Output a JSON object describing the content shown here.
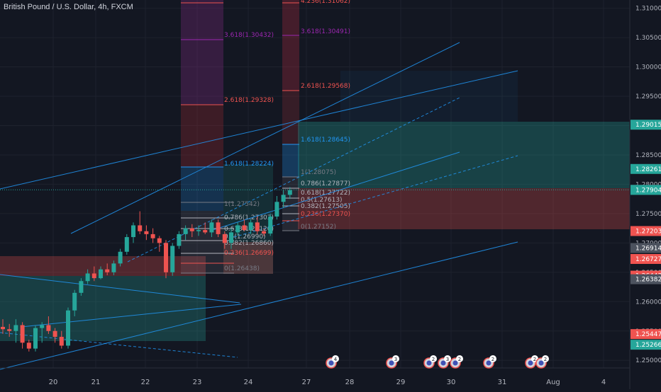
{
  "chart_data": {
    "type": "candlestick",
    "title": "British Pound / U.S. Dollar, 4h, FXCM",
    "ylim": [
      1.2487,
      1.3114
    ],
    "y_ticks": [
      "1.31000",
      "1.30500",
      "1.30000",
      "1.29500",
      "1.29000",
      "1.28500",
      "1.28000",
      "1.27500",
      "1.27000",
      "1.26500",
      "1.26000",
      "1.25500",
      "1.25000"
    ],
    "x_ticks": [
      "20",
      "21",
      "22",
      "23",
      "24",
      "27",
      "28",
      "29",
      "30",
      "31",
      "Aug",
      "4"
    ],
    "price_labels": [
      {
        "value": "1.29015",
        "color": "#26a69a"
      },
      {
        "value": "1.28261",
        "color": "#26a69a"
      },
      {
        "value": "1.27906",
        "color": "#4c525e"
      },
      {
        "value": "1.27904",
        "color": "#26a69a"
      },
      {
        "value": "1.27203",
        "color": "#ef5350"
      },
      {
        "value": "1.26914",
        "color": "#4c525e"
      },
      {
        "value": "1.26727",
        "color": "#ef5350"
      },
      {
        "value": "1.26443",
        "color": "#ef5350"
      },
      {
        "value": "1.26382",
        "color": "#4c525e"
      },
      {
        "value": "1.25447",
        "color": "#ef5350"
      },
      {
        "value": "1.25266",
        "color": "#26a69a"
      }
    ],
    "candles": [
      {
        "o": 1.2557,
        "h": 1.257,
        "l": 1.2545,
        "c": 1.2553
      },
      {
        "o": 1.2553,
        "h": 1.2562,
        "l": 1.254,
        "c": 1.255
      },
      {
        "o": 1.255,
        "h": 1.257,
        "l": 1.253,
        "c": 1.256
      },
      {
        "o": 1.256,
        "h": 1.2565,
        "l": 1.252,
        "c": 1.253
      },
      {
        "o": 1.253,
        "h": 1.2535,
        "l": 1.2515,
        "c": 1.252
      },
      {
        "o": 1.252,
        "h": 1.256,
        "l": 1.2515,
        "c": 1.2555
      },
      {
        "o": 1.2555,
        "h": 1.2565,
        "l": 1.253,
        "c": 1.256
      },
      {
        "o": 1.256,
        "h": 1.2575,
        "l": 1.2545,
        "c": 1.255
      },
      {
        "o": 1.255,
        "h": 1.2555,
        "l": 1.253,
        "c": 1.254
      },
      {
        "o": 1.254,
        "h": 1.255,
        "l": 1.252,
        "c": 1.2525
      },
      {
        "o": 1.2525,
        "h": 1.259,
        "l": 1.252,
        "c": 1.2585
      },
      {
        "o": 1.2585,
        "h": 1.262,
        "l": 1.2575,
        "c": 1.2615
      },
      {
        "o": 1.2615,
        "h": 1.264,
        "l": 1.261,
        "c": 1.2635
      },
      {
        "o": 1.2635,
        "h": 1.2655,
        "l": 1.263,
        "c": 1.2648
      },
      {
        "o": 1.2648,
        "h": 1.266,
        "l": 1.2635,
        "c": 1.264
      },
      {
        "o": 1.264,
        "h": 1.266,
        "l": 1.2638,
        "c": 1.2655
      },
      {
        "o": 1.2655,
        "h": 1.2665,
        "l": 1.2645,
        "c": 1.265
      },
      {
        "o": 1.265,
        "h": 1.267,
        "l": 1.2645,
        "c": 1.2665
      },
      {
        "o": 1.2665,
        "h": 1.269,
        "l": 1.266,
        "c": 1.2685
      },
      {
        "o": 1.2685,
        "h": 1.2715,
        "l": 1.268,
        "c": 1.271
      },
      {
        "o": 1.271,
        "h": 1.2735,
        "l": 1.27,
        "c": 1.273
      },
      {
        "o": 1.273,
        "h": 1.2754,
        "l": 1.2715,
        "c": 1.272
      },
      {
        "o": 1.272,
        "h": 1.273,
        "l": 1.2705,
        "c": 1.2715
      },
      {
        "o": 1.2715,
        "h": 1.2725,
        "l": 1.27,
        "c": 1.2708
      },
      {
        "o": 1.2708,
        "h": 1.2712,
        "l": 1.2685,
        "c": 1.27
      },
      {
        "o": 1.27,
        "h": 1.2705,
        "l": 1.264,
        "c": 1.265
      },
      {
        "o": 1.265,
        "h": 1.27,
        "l": 1.2644,
        "c": 1.2695
      },
      {
        "o": 1.2695,
        "h": 1.272,
        "l": 1.269,
        "c": 1.2715
      },
      {
        "o": 1.2715,
        "h": 1.273,
        "l": 1.2705,
        "c": 1.2725
      },
      {
        "o": 1.2725,
        "h": 1.2732,
        "l": 1.271,
        "c": 1.272
      },
      {
        "o": 1.272,
        "h": 1.273,
        "l": 1.2712,
        "c": 1.2722
      },
      {
        "o": 1.2722,
        "h": 1.2735,
        "l": 1.2715,
        "c": 1.2718
      },
      {
        "o": 1.2718,
        "h": 1.274,
        "l": 1.271,
        "c": 1.2735
      },
      {
        "o": 1.2735,
        "h": 1.274,
        "l": 1.271,
        "c": 1.2715
      },
      {
        "o": 1.2715,
        "h": 1.272,
        "l": 1.269,
        "c": 1.27
      },
      {
        "o": 1.27,
        "h": 1.2725,
        "l": 1.269,
        "c": 1.2718
      },
      {
        "o": 1.2718,
        "h": 1.2735,
        "l": 1.2712,
        "c": 1.273
      },
      {
        "o": 1.273,
        "h": 1.274,
        "l": 1.272,
        "c": 1.2722
      },
      {
        "o": 1.2722,
        "h": 1.274,
        "l": 1.2715,
        "c": 1.2735
      },
      {
        "o": 1.2735,
        "h": 1.2745,
        "l": 1.2715,
        "c": 1.272
      },
      {
        "o": 1.272,
        "h": 1.2725,
        "l": 1.2712,
        "c": 1.2716
      },
      {
        "o": 1.2716,
        "h": 1.275,
        "l": 1.2712,
        "c": 1.2745
      },
      {
        "o": 1.2745,
        "h": 1.278,
        "l": 1.274,
        "c": 1.277
      },
      {
        "o": 1.277,
        "h": 1.279,
        "l": 1.276,
        "c": 1.2782
      },
      {
        "o": 1.2782,
        "h": 1.2795,
        "l": 1.2775,
        "c": 1.279
      }
    ],
    "fib_labels": [
      {
        "text": "4.236(1.31062)",
        "color": "#ef5350"
      },
      {
        "text": "3.618(1.30432)",
        "color": "#9c27b0"
      },
      {
        "text": "3.618(1.30491)",
        "color": "#9c27b0"
      },
      {
        "text": "2.618(1.29328)",
        "color": "#ef5350"
      },
      {
        "text": "2.618(1.29568)",
        "color": "#ef5350"
      },
      {
        "text": "1.618(1.28645)",
        "color": "#2196f3"
      },
      {
        "text": "1.618(1.28224)",
        "color": "#2196f3"
      },
      {
        "text": "1(1.28075)",
        "color": "#787b86"
      },
      {
        "text": "0.786(1.27877)",
        "color": "#b2b5be"
      },
      {
        "text": "0.618(1.27722)",
        "color": "#b2b5be"
      },
      {
        "text": "0.5(1.27613)",
        "color": "#b2b5be"
      },
      {
        "text": "0.382(1.27505)",
        "color": "#b2b5be"
      },
      {
        "text": "0.236(1.27370)",
        "color": "#ef5350"
      },
      {
        "text": "0(1.27152)",
        "color": "#787b86"
      },
      {
        "text": "1(1.27542)",
        "color": "#787b86"
      },
      {
        "text": "0.786(1.27303)",
        "color": "#b2b5be"
      },
      {
        "text": "0.618(1.27120)",
        "color": "#b2b5be"
      },
      {
        "text": "0.5(1.26990)",
        "color": "#b2b5be"
      },
      {
        "text": "0.382(1.26860)",
        "color": "#b2b5be"
      },
      {
        "text": "0.236(1.26699)",
        "color": "#ef5350"
      },
      {
        "text": "0(1.26438)",
        "color": "#787b86"
      }
    ],
    "event_badges": [
      "4",
      "3",
      "2",
      "3",
      "2",
      "2",
      "2",
      "2"
    ],
    "colors": {
      "up": "#26a69a",
      "down": "#ef5350",
      "line": "#2196f3",
      "bg": "#131722",
      "grid": "#1e222d",
      "axis_text": "#b2b5be"
    }
  }
}
